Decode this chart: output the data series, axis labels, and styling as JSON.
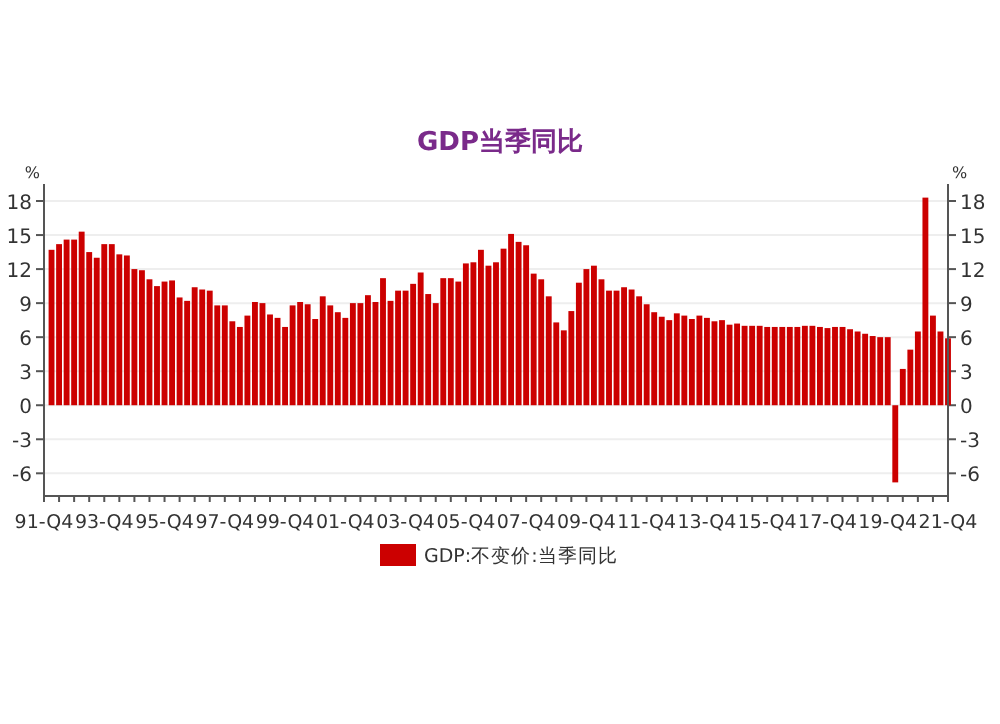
{
  "chart_data": {
    "type": "bar",
    "title": "GDP当季同比",
    "ylabel": "%",
    "y2label": "%",
    "categories": [
      "91-Q4",
      null,
      null,
      null,
      null,
      null,
      null,
      null,
      "93-Q4",
      null,
      null,
      null,
      null,
      null,
      null,
      null,
      "95-Q4",
      null,
      null,
      null,
      null,
      null,
      null,
      null,
      "97-Q4",
      null,
      null,
      null,
      null,
      null,
      null,
      null,
      "99-Q4",
      null,
      null,
      null,
      null,
      null,
      null,
      null,
      "01-Q4",
      null,
      null,
      null,
      null,
      null,
      null,
      null,
      "03-Q4",
      null,
      null,
      null,
      null,
      null,
      null,
      null,
      "05-Q4",
      null,
      null,
      null,
      null,
      null,
      null,
      null,
      "07-Q4",
      null,
      null,
      null,
      null,
      null,
      null,
      null,
      "09-Q4",
      null,
      null,
      null,
      null,
      null,
      null,
      null,
      "11-Q4",
      null,
      null,
      null,
      null,
      null,
      null,
      null,
      "13-Q4",
      null,
      null,
      null,
      null,
      null,
      null,
      null,
      "15-Q4",
      null,
      null,
      null,
      null,
      null,
      null,
      null,
      "17-Q4",
      null,
      null,
      null,
      null,
      null,
      null,
      null,
      "19-Q4",
      null,
      null,
      null,
      null,
      null,
      null,
      null,
      "21-Q4"
    ],
    "series": [
      {
        "name": "GDP:不变价:当季同比",
        "color": "#cc0000",
        "values": [
          null,
          13.7,
          14.2,
          14.6,
          14.6,
          15.3,
          13.5,
          13.0,
          14.2,
          14.2,
          13.3,
          13.2,
          12.0,
          11.9,
          11.1,
          10.5,
          10.9,
          11.0,
          9.5,
          9.2,
          10.4,
          10.2,
          10.1,
          8.8,
          8.8,
          7.4,
          6.9,
          7.9,
          9.1,
          9.0,
          8.0,
          7.7,
          6.9,
          8.8,
          9.1,
          8.9,
          7.6,
          9.6,
          8.8,
          8.2,
          7.7,
          9.0,
          9.0,
          9.7,
          9.1,
          11.2,
          9.2,
          10.1,
          10.1,
          10.7,
          11.7,
          9.8,
          9.0,
          11.2,
          11.2,
          10.9,
          12.5,
          12.6,
          13.7,
          12.3,
          12.6,
          13.8,
          15.1,
          14.4,
          14.1,
          11.6,
          11.1,
          9.6,
          7.3,
          6.6,
          8.3,
          10.8,
          12.0,
          12.3,
          11.1,
          10.1,
          10.1,
          10.4,
          10.2,
          9.6,
          8.9,
          8.2,
          7.8,
          7.5,
          8.1,
          7.9,
          7.6,
          7.9,
          7.7,
          7.4,
          7.5,
          7.1,
          7.2,
          7.0,
          7.0,
          7.0,
          6.9,
          6.9,
          6.9,
          6.9,
          6.9,
          7.0,
          7.0,
          6.9,
          6.8,
          6.9,
          6.9,
          6.7,
          6.5,
          6.3,
          6.1,
          6.0,
          6.0,
          -6.8,
          3.2,
          4.9,
          6.5,
          18.3,
          7.9,
          6.5,
          5.9
        ]
      }
    ],
    "ylim": [
      -8,
      19.5
    ],
    "yticks": [
      -6,
      -3,
      0,
      3,
      6,
      9,
      12,
      15,
      18
    ],
    "y2lim": [
      -8,
      19.5
    ],
    "y2ticks": [
      -6,
      -3,
      0,
      3,
      6,
      9,
      12,
      15,
      18
    ],
    "grid": "y",
    "legend": "bottom"
  }
}
